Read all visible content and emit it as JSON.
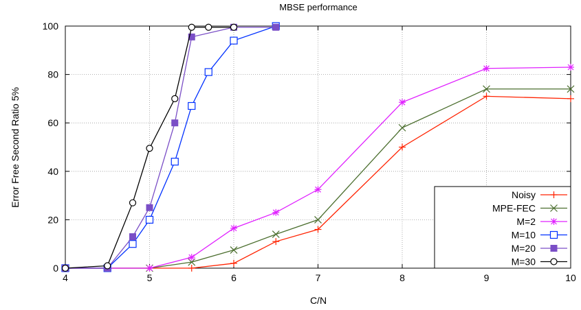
{
  "chart_data": {
    "type": "line",
    "title": "MBSE performance",
    "xlabel": "C/N",
    "ylabel": "Error Free Second Ratio 5%",
    "xlim": [
      4,
      10
    ],
    "ylim": [
      0,
      100
    ],
    "x_ticks": [
      4,
      5,
      6,
      7,
      8,
      9,
      10
    ],
    "y_ticks": [
      0,
      20,
      40,
      60,
      80,
      100
    ],
    "x_tick_labels": [
      "4",
      "5",
      "6",
      "7",
      "8",
      "9",
      "10"
    ],
    "y_tick_labels": [
      "0",
      "20",
      "40",
      "60",
      "80",
      "100"
    ],
    "grid": true,
    "legend_position": "bottom-right",
    "series": [
      {
        "name": "Noisy",
        "color": "#ff2200",
        "marker": "plus",
        "x": [
          4,
          4.5,
          5,
          5.5,
          6,
          6.5,
          7,
          8,
          9,
          10
        ],
        "y": [
          0,
          0,
          0,
          0,
          2,
          11,
          16,
          50,
          71,
          70
        ]
      },
      {
        "name": "MPE-FEC",
        "color": "#4b6e2e",
        "marker": "x",
        "x": [
          4,
          4.5,
          5,
          5.5,
          6,
          6.5,
          7,
          8,
          9,
          10
        ],
        "y": [
          0,
          0,
          0,
          2.5,
          7.5,
          14,
          20,
          58,
          74,
          74
        ]
      },
      {
        "name": "M=2",
        "color": "#e020ff",
        "marker": "star",
        "x": [
          4,
          4.5,
          5,
          5.5,
          6,
          6.5,
          7,
          8,
          9,
          10
        ],
        "y": [
          0,
          0,
          0,
          4.5,
          16.5,
          23,
          32.5,
          68.5,
          82.5,
          83
        ]
      },
      {
        "name": "M=10",
        "color": "#0030ff",
        "marker": "square-open",
        "x": [
          4,
          4.5,
          4.8,
          5,
          5.3,
          5.5,
          5.7,
          6,
          6.5
        ],
        "y": [
          0,
          0,
          10,
          20,
          44,
          67,
          81,
          94,
          100
        ]
      },
      {
        "name": "M=20",
        "color": "#7a4ec6",
        "marker": "square-filled",
        "x": [
          4,
          4.5,
          4.8,
          5,
          5.3,
          5.5,
          6,
          6.5
        ],
        "y": [
          0,
          0,
          13,
          25,
          60,
          95.5,
          99.5,
          99.5
        ]
      },
      {
        "name": "M=30",
        "color": "#000000",
        "marker": "circle-open",
        "x": [
          4,
          4.5,
          4.8,
          5,
          5.3,
          5.5,
          5.7,
          6
        ],
        "y": [
          0,
          1,
          27,
          49.5,
          70,
          99.5,
          99.5,
          99.5
        ]
      }
    ]
  }
}
